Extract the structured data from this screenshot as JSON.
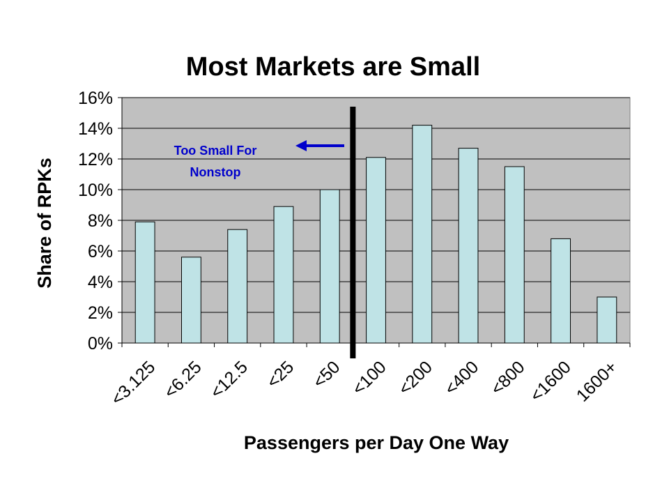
{
  "colors": {
    "plot_bg": "#c0c0c0",
    "bar_fill": "#bfe3e6",
    "bar_stroke": "#000000",
    "grid": "#000000",
    "divider": "#000000",
    "annotation": "#0000cc"
  },
  "chart_data": {
    "type": "bar",
    "title": "Most Markets are Small",
    "xlabel": "Passengers per Day One Way",
    "ylabel": "Share of RPKs",
    "categories": [
      "<3.125",
      "<6.25",
      "<12.5",
      "<25",
      "<50",
      "<100",
      "<200",
      "<400",
      "<800",
      "<1600",
      "1600+"
    ],
    "values": [
      7.9,
      5.6,
      7.4,
      8.9,
      10.0,
      12.1,
      14.2,
      12.7,
      11.5,
      6.8,
      3.0
    ],
    "ylim": [
      0,
      16
    ],
    "yticks": [
      0,
      2,
      4,
      6,
      8,
      10,
      12,
      14,
      16
    ],
    "ytick_labels": [
      "0%",
      "2%",
      "4%",
      "6%",
      "8%",
      "10%",
      "12%",
      "14%",
      "16%"
    ],
    "grid": true,
    "divider_after_category_index": 4,
    "annotation": {
      "lines": [
        "Too Small For",
        "Nonstop"
      ],
      "arrow_direction": "left"
    }
  }
}
